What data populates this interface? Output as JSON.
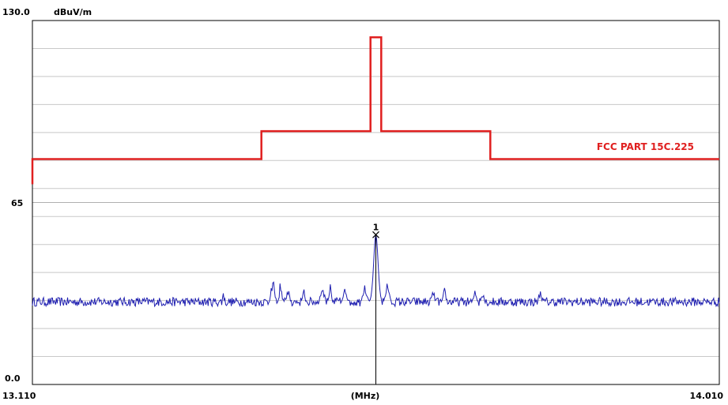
{
  "chart_data": {
    "type": "line",
    "y_top_label": "130.0",
    "y_unit": "dBuV/m",
    "y_mid_label": "65",
    "y_bottom_label": "0.0",
    "x_left_label": "13.110",
    "x_center_label": "(MHz)",
    "x_right_label": "14.010",
    "ylim": [
      0,
      130
    ],
    "xlim": [
      13.11,
      14.01
    ],
    "grid": true,
    "y_grid_step": 10,
    "marker": {
      "label": "1",
      "x": 13.56,
      "y": 53.5
    },
    "limit_line": {
      "name": "FCC PART 15C.225",
      "color": "#e02020",
      "points": [
        [
          13.11,
          71.5
        ],
        [
          13.11,
          80.5
        ],
        [
          13.41,
          80.5
        ],
        [
          13.41,
          90.5
        ],
        [
          13.553,
          90.5
        ],
        [
          13.553,
          124
        ],
        [
          13.567,
          124
        ],
        [
          13.567,
          90.5
        ],
        [
          13.71,
          90.5
        ],
        [
          13.71,
          80.5
        ],
        [
          14.01,
          80.5
        ]
      ]
    },
    "trace": {
      "color": "#1f1fb0",
      "noise_floor": 29.5,
      "noise_amplitude": 1.6,
      "peaks": [
        {
          "x": 13.56,
          "y": 53.5,
          "width": 0.004
        },
        {
          "x": 13.36,
          "y": 34.5,
          "width": 0.001
        },
        {
          "x": 13.425,
          "y": 37.5,
          "width": 0.003
        },
        {
          "x": 13.435,
          "y": 37.0,
          "width": 0.002
        },
        {
          "x": 13.445,
          "y": 35.5,
          "width": 0.002
        },
        {
          "x": 13.465,
          "y": 35.0,
          "width": 0.002
        },
        {
          "x": 13.49,
          "y": 37.5,
          "width": 0.003
        },
        {
          "x": 13.5,
          "y": 36.0,
          "width": 0.002
        },
        {
          "x": 13.52,
          "y": 35.0,
          "width": 0.003
        },
        {
          "x": 13.545,
          "y": 38.0,
          "width": 0.003
        },
        {
          "x": 13.575,
          "y": 37.0,
          "width": 0.003
        },
        {
          "x": 13.635,
          "y": 34.5,
          "width": 0.002
        },
        {
          "x": 13.65,
          "y": 35.5,
          "width": 0.002
        },
        {
          "x": 13.69,
          "y": 35.0,
          "width": 0.002
        },
        {
          "x": 13.7,
          "y": 34.5,
          "width": 0.002
        },
        {
          "x": 13.775,
          "y": 34.0,
          "width": 0.002
        }
      ]
    }
  }
}
